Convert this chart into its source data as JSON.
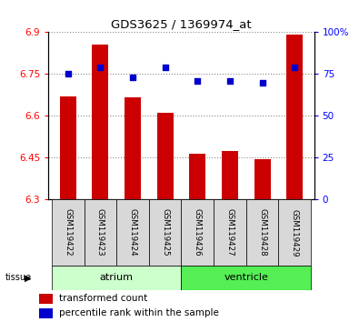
{
  "title": "GDS3625 / 1369974_at",
  "samples": [
    "GSM119422",
    "GSM119423",
    "GSM119424",
    "GSM119425",
    "GSM119426",
    "GSM119427",
    "GSM119428",
    "GSM119429"
  ],
  "bar_values": [
    6.67,
    6.855,
    6.665,
    6.61,
    6.463,
    6.475,
    6.445,
    6.89
  ],
  "percentile_values": [
    75,
    79,
    73,
    79,
    71,
    71,
    70,
    79
  ],
  "ylim_left": [
    6.3,
    6.9
  ],
  "ylim_right": [
    0,
    100
  ],
  "yticks_left": [
    6.3,
    6.45,
    6.6,
    6.75,
    6.9
  ],
  "yticks_right": [
    0,
    25,
    50,
    75,
    100
  ],
  "ytick_labels_left": [
    "6.3",
    "6.45",
    "6.6",
    "6.75",
    "6.9"
  ],
  "ytick_labels_right": [
    "0",
    "25",
    "50",
    "75",
    "100%"
  ],
  "bar_color": "#cc0000",
  "dot_color": "#0000cc",
  "grid_color": "#888888",
  "bar_width": 0.5,
  "tissue_label": "tissue",
  "legend_bar_label": "transformed count",
  "legend_dot_label": "percentile rank within the sample",
  "background_color": "#ffffff",
  "tick_bg_color": "#d8d8d8",
  "atrium_color": "#ccffcc",
  "ventricle_color": "#55ee55",
  "atrium_label": "atrium",
  "ventricle_label": "ventricle",
  "atrium_range": [
    0,
    4
  ],
  "ventricle_range": [
    4,
    8
  ]
}
